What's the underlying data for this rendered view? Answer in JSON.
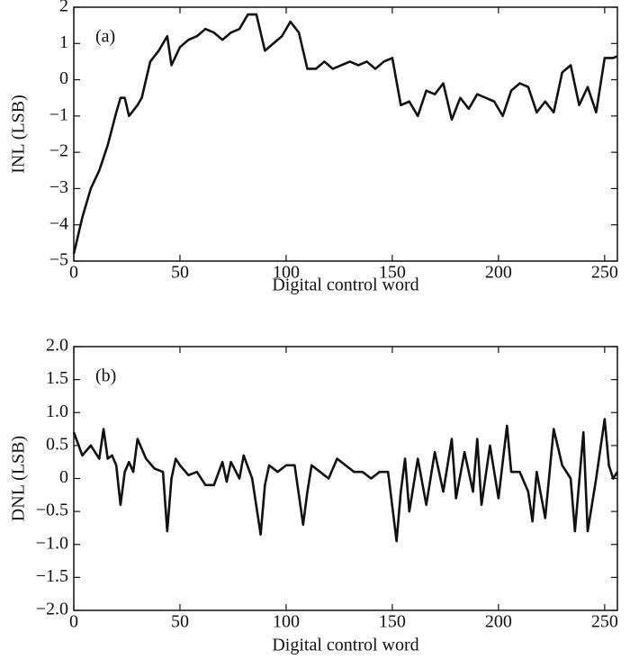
{
  "chart_data": [
    {
      "type": "line",
      "annotation": "(a)",
      "x_label": "Digital control word",
      "y_label": "INL (LSB)",
      "xlim": [
        0,
        256
      ],
      "ylim": [
        -5,
        2
      ],
      "xticks": [
        0,
        50,
        100,
        150,
        200,
        250
      ],
      "yticks": [
        {
          "value": -5,
          "label": "−5"
        },
        {
          "value": -4,
          "label": "−4"
        },
        {
          "value": -3,
          "label": "−3"
        },
        {
          "value": -2,
          "label": "−2"
        },
        {
          "value": -1,
          "label": "−1"
        },
        0,
        1,
        2
      ],
      "series": [
        {
          "color": "#111111",
          "x": [
            0,
            4,
            8,
            12,
            16,
            20,
            22,
            24,
            26,
            30,
            32,
            36,
            40,
            44,
            46,
            50,
            54,
            58,
            62,
            66,
            70,
            74,
            78,
            82,
            86,
            90,
            94,
            98,
            102,
            106,
            110,
            114,
            118,
            122,
            126,
            130,
            134,
            138,
            142,
            146,
            150,
            154,
            158,
            162,
            166,
            170,
            174,
            178,
            182,
            186,
            190,
            194,
            198,
            202,
            206,
            210,
            214,
            218,
            222,
            226,
            230,
            234,
            238,
            242,
            246,
            250,
            254,
            256
          ],
          "values": [
            -4.8,
            -3.8,
            -3.0,
            -2.5,
            -1.8,
            -0.9,
            -0.5,
            -0.5,
            -1.0,
            -0.7,
            -0.5,
            0.5,
            0.8,
            1.2,
            0.4,
            0.9,
            1.1,
            1.2,
            1.4,
            1.3,
            1.1,
            1.3,
            1.4,
            1.8,
            1.8,
            0.8,
            1.0,
            1.2,
            1.6,
            1.3,
            0.3,
            0.3,
            0.5,
            0.3,
            0.4,
            0.5,
            0.4,
            0.5,
            0.3,
            0.5,
            0.6,
            -0.7,
            -0.6,
            -1.0,
            -0.3,
            -0.4,
            -0.1,
            -1.1,
            -0.5,
            -0.8,
            -0.4,
            -0.5,
            -0.6,
            -1.0,
            -0.3,
            -0.1,
            -0.2,
            -0.9,
            -0.6,
            -0.9,
            0.2,
            0.4,
            -0.7,
            -0.2,
            -0.9,
            0.6,
            0.6,
            0.65
          ]
        }
      ]
    },
    {
      "type": "line",
      "annotation": "(b)",
      "x_label": "Digital control word",
      "y_label": "DNL (LSB)",
      "xlim": [
        0,
        256
      ],
      "ylim": [
        -2,
        2
      ],
      "xticks": [
        0,
        50,
        100,
        150,
        200,
        250
      ],
      "yticks": [
        {
          "value": -2,
          "label": "−2.0"
        },
        {
          "value": -1.5,
          "label": "−1.5"
        },
        {
          "value": -1,
          "label": "−1.0"
        },
        {
          "value": -0.5,
          "label": "−0.5"
        },
        0,
        0.5,
        {
          "value": 1,
          "label": "1.0"
        },
        1.5,
        {
          "value": 2,
          "label": "2.0"
        }
      ],
      "series": [
        {
          "color": "#111111",
          "x": [
            0,
            4,
            8,
            12,
            14,
            16,
            18,
            20,
            22,
            24,
            26,
            28,
            30,
            34,
            38,
            42,
            44,
            46,
            48,
            50,
            54,
            58,
            62,
            66,
            70,
            72,
            74,
            78,
            80,
            84,
            88,
            90,
            92,
            96,
            100,
            104,
            108,
            110,
            112,
            116,
            120,
            124,
            128,
            132,
            136,
            140,
            144,
            148,
            152,
            154,
            156,
            158,
            162,
            166,
            170,
            174,
            178,
            180,
            184,
            188,
            190,
            192,
            196,
            200,
            204,
            206,
            210,
            214,
            216,
            218,
            222,
            226,
            230,
            234,
            236,
            240,
            242,
            246,
            250,
            252,
            254,
            256
          ],
          "values": [
            0.7,
            0.35,
            0.5,
            0.3,
            0.75,
            0.3,
            0.35,
            0.2,
            -0.4,
            0.1,
            0.25,
            0.1,
            0.6,
            0.3,
            0.15,
            0.1,
            -0.8,
            0.0,
            0.3,
            0.2,
            0.05,
            0.1,
            -0.1,
            -0.1,
            0.25,
            -0.05,
            0.25,
            0.0,
            0.35,
            0.0,
            -0.85,
            -0.1,
            0.2,
            0.1,
            0.2,
            0.2,
            -0.7,
            -0.2,
            0.2,
            0.1,
            0.0,
            0.3,
            0.2,
            0.1,
            0.1,
            0.0,
            0.1,
            0.1,
            -0.95,
            -0.2,
            0.3,
            -0.5,
            0.3,
            -0.4,
            0.4,
            -0.2,
            0.6,
            -0.3,
            0.4,
            -0.2,
            0.6,
            -0.4,
            0.5,
            -0.3,
            0.8,
            0.1,
            0.1,
            -0.2,
            -0.65,
            0.1,
            -0.6,
            0.75,
            0.2,
            0.0,
            -0.8,
            0.7,
            -0.8,
            0.0,
            0.9,
            0.2,
            0.0,
            0.1
          ]
        }
      ]
    }
  ]
}
